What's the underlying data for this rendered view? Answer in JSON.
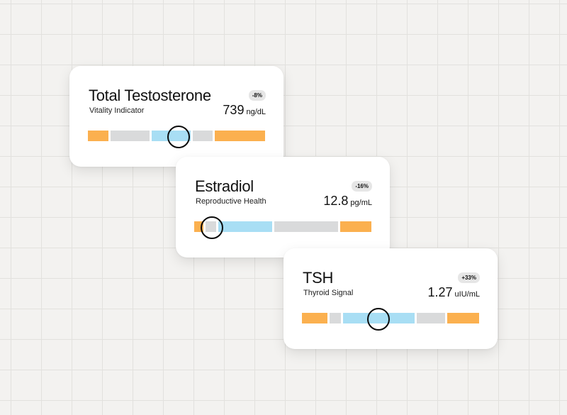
{
  "cards": [
    {
      "title": "Total Testosterone",
      "subtitle": "Vitality Indicator",
      "badge": "-8%",
      "value": "739",
      "unit": "ng/dL",
      "range_position": 0.51
    },
    {
      "title": "Estradiol",
      "subtitle": "Reproductive Health",
      "badge": "-16%",
      "value": "12.8",
      "unit": "pg/mL",
      "range_position": 0.1
    },
    {
      "title": "TSH",
      "subtitle": "Thyroid Signal",
      "badge": "+33%",
      "value": "1.27",
      "unit": "uIU/mL",
      "range_position": 0.43
    }
  ],
  "colors": {
    "low_high": "#fbb04f",
    "neutral": "#d9dadb",
    "optimal": "#a8def4",
    "marker": "#0b0b0b"
  }
}
